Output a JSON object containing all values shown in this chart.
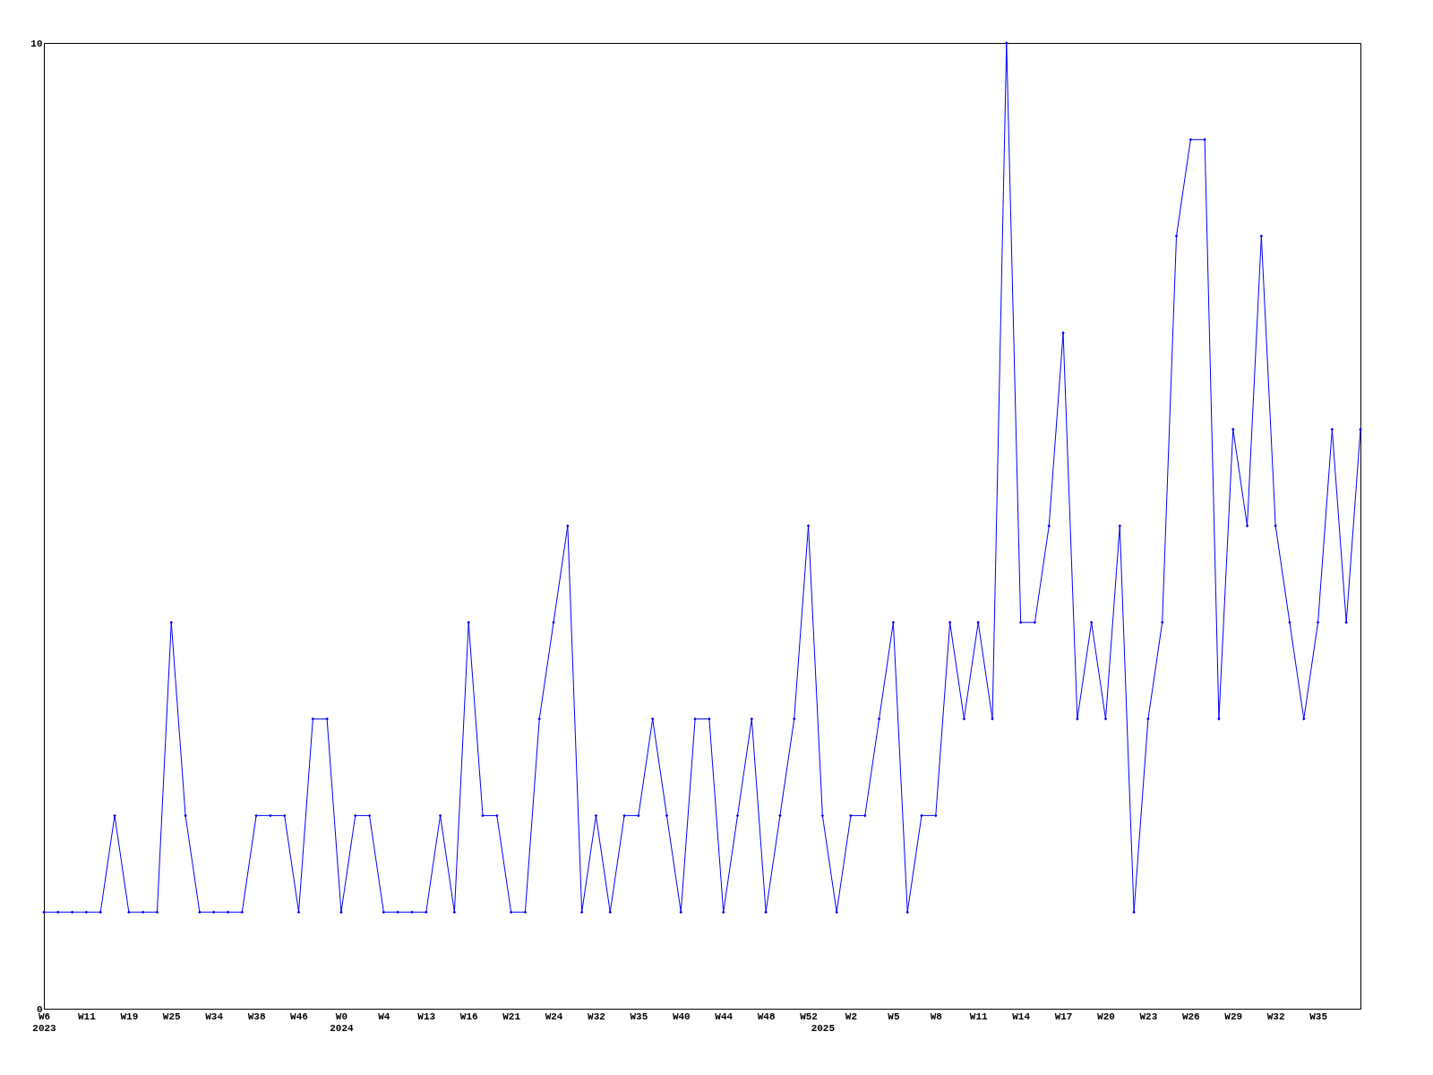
{
  "chart_data": {
    "type": "line",
    "categories": [
      "W6\n2023",
      null,
      null,
      "W11",
      null,
      null,
      "W19",
      null,
      null,
      "W25",
      null,
      null,
      "W34",
      null,
      null,
      "W38",
      null,
      null,
      "W46",
      null,
      null,
      "W0\n2024",
      null,
      null,
      "W4",
      null,
      null,
      "W13",
      null,
      null,
      "W16",
      null,
      null,
      "W21",
      null,
      null,
      "W24",
      null,
      null,
      "W32",
      null,
      null,
      "W35",
      null,
      null,
      "W40",
      null,
      null,
      "W44",
      null,
      null,
      "W48",
      null,
      null,
      "W52",
      "\n2025",
      null,
      "W2",
      null,
      null,
      "W5",
      null,
      null,
      "W8",
      null,
      null,
      "W11",
      null,
      null,
      "W14",
      null,
      null,
      "W17",
      null,
      null,
      "W20",
      null,
      null,
      "W23",
      null,
      null,
      "W26",
      null,
      null,
      "W29",
      null,
      null,
      "W32",
      null,
      null,
      "W35",
      null,
      null,
      null
    ],
    "series": [
      {
        "color": "#0000ff",
        "values": [
          1,
          1,
          1,
          1,
          1,
          2,
          1,
          1,
          1,
          4,
          2,
          1,
          1,
          1,
          1,
          2,
          2,
          2,
          1,
          3,
          3,
          1,
          2,
          2,
          1,
          1,
          1,
          1,
          2,
          1,
          4,
          2,
          2,
          1,
          1,
          3,
          4,
          5,
          1,
          2,
          1,
          2,
          2,
          3,
          2,
          1,
          3,
          3,
          1,
          2,
          3,
          1,
          2,
          3,
          5,
          2,
          1,
          2,
          2,
          3,
          4,
          1,
          2,
          2,
          4,
          3,
          4,
          3,
          10,
          4,
          4,
          5,
          7,
          3,
          4,
          3,
          5,
          1,
          3,
          4,
          8,
          9,
          9,
          3,
          6,
          5,
          8,
          5,
          4,
          3,
          4,
          6,
          4,
          6
        ]
      }
    ],
    "ylim": [
      0,
      10
    ],
    "yticks": [
      0,
      10
    ],
    "marker": "diamond",
    "line_style": "solid",
    "legend": false
  }
}
